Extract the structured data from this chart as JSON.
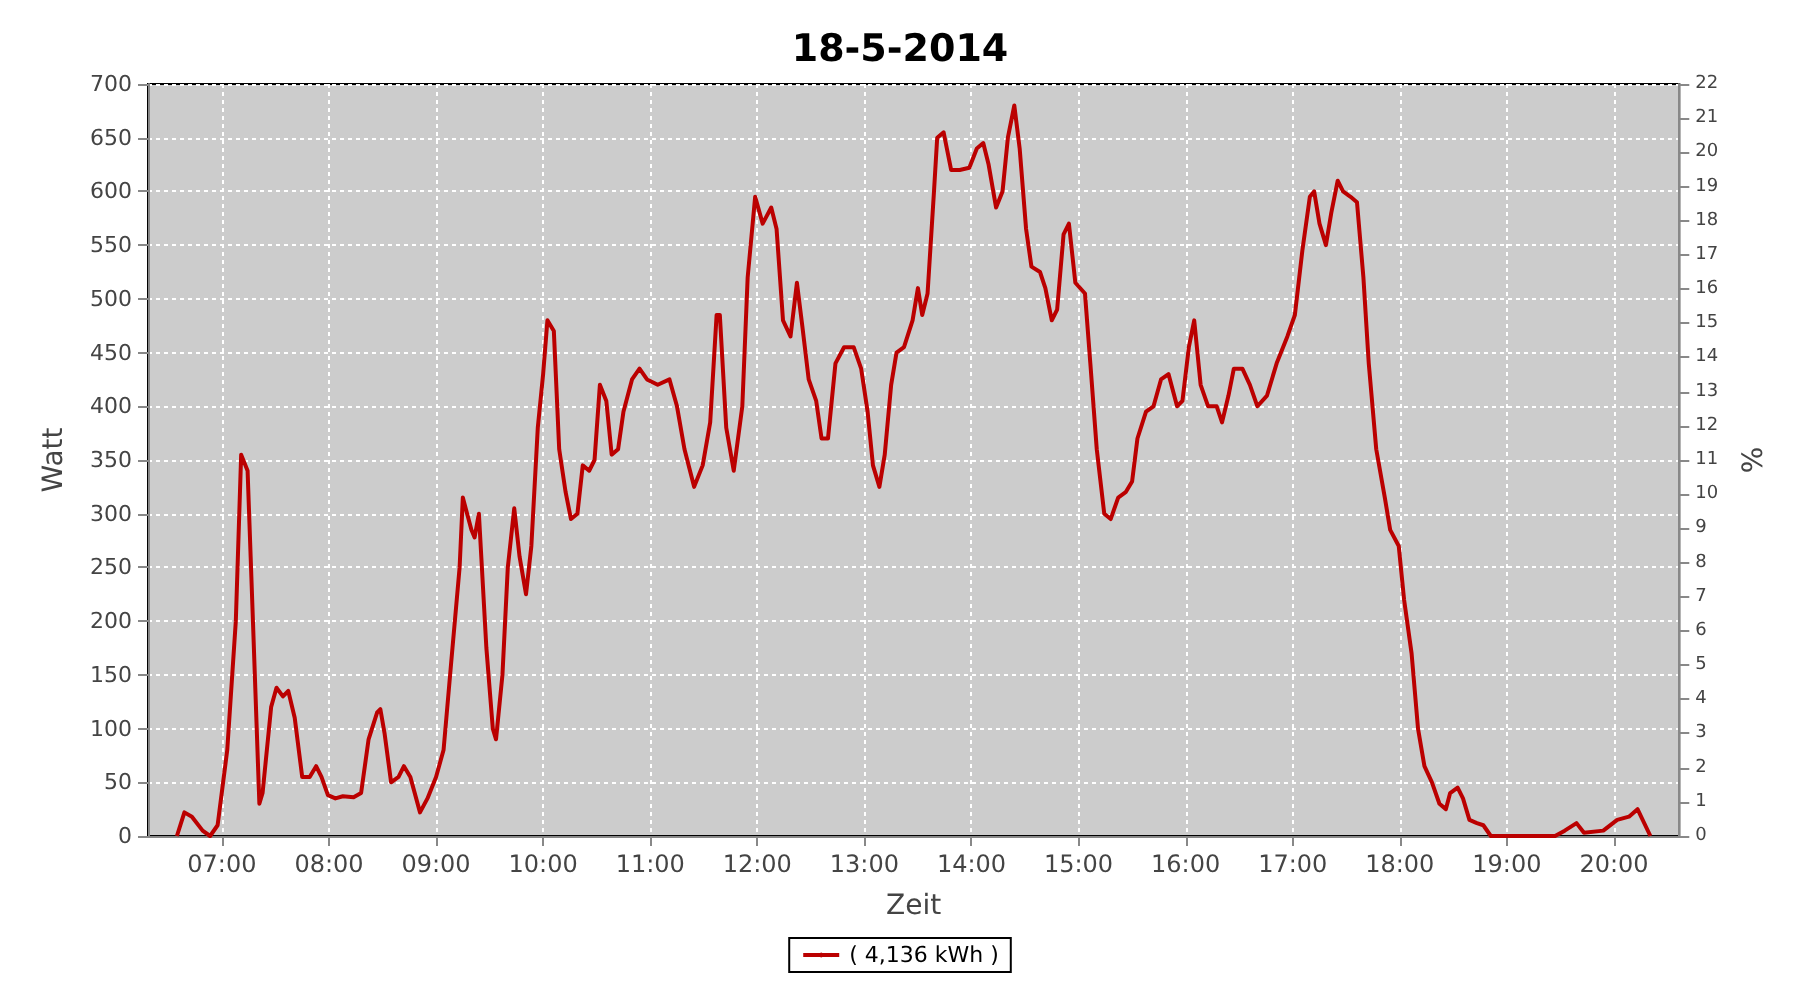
{
  "chart_data": {
    "type": "line",
    "title": "18-5-2014",
    "xlabel": "Zeit",
    "ylabel": "Watt",
    "y2label": "%",
    "xlim": [
      6.31,
      20.61
    ],
    "xticks": [
      {
        "value": 7,
        "label": "07:00"
      },
      {
        "value": 8,
        "label": "08:00"
      },
      {
        "value": 9,
        "label": "09:00"
      },
      {
        "value": 10,
        "label": "10:00"
      },
      {
        "value": 11,
        "label": "11:00"
      },
      {
        "value": 12,
        "label": "12:00"
      },
      {
        "value": 13,
        "label": "13:00"
      },
      {
        "value": 14,
        "label": "14:00"
      },
      {
        "value": 15,
        "label": "15:00"
      },
      {
        "value": 16,
        "label": "16:00"
      },
      {
        "value": 17,
        "label": "17:00"
      },
      {
        "value": 18,
        "label": "18:00"
      },
      {
        "value": 19,
        "label": "19:00"
      },
      {
        "value": 20,
        "label": "20:00"
      }
    ],
    "ylim": [
      0,
      700
    ],
    "yticks": [
      0,
      50,
      100,
      150,
      200,
      250,
      300,
      350,
      400,
      450,
      500,
      550,
      600,
      650,
      700
    ],
    "y2lim": [
      0,
      22
    ],
    "y2ticks": [
      0,
      1,
      2,
      3,
      4,
      5,
      6,
      7,
      8,
      9,
      10,
      11,
      12,
      13,
      14,
      15,
      16,
      17,
      18,
      19,
      20,
      21,
      22
    ],
    "grid": true,
    "legend": "bottom",
    "marker": "none",
    "line_style": "solid",
    "series": [
      {
        "name": "( 4,136 kWh )",
        "color": "#bb0000",
        "x": [
          6.58,
          6.65,
          6.72,
          6.82,
          6.89,
          6.96,
          7.05,
          7.13,
          7.18,
          7.24,
          7.29,
          7.35,
          7.38,
          7.46,
          7.51,
          7.57,
          7.62,
          7.68,
          7.75,
          7.82,
          7.88,
          7.93,
          7.99,
          8.06,
          8.13,
          8.23,
          8.3,
          8.37,
          8.45,
          8.48,
          8.52,
          8.58,
          8.65,
          8.7,
          8.76,
          8.85,
          8.92,
          9.0,
          9.07,
          9.14,
          9.22,
          9.25,
          9.33,
          9.36,
          9.4,
          9.47,
          9.53,
          9.56,
          9.62,
          9.67,
          9.73,
          9.78,
          9.84,
          9.89,
          9.95,
          10.0,
          10.04,
          10.1,
          10.15,
          10.21,
          10.26,
          10.32,
          10.37,
          10.43,
          10.48,
          10.53,
          10.59,
          10.64,
          10.7,
          10.75,
          10.83,
          10.9,
          10.97,
          11.07,
          11.18,
          11.25,
          11.32,
          11.41,
          11.49,
          11.56,
          11.62,
          11.65,
          11.71,
          11.78,
          11.86,
          11.91,
          11.98,
          12.05,
          12.13,
          12.18,
          12.24,
          12.31,
          12.37,
          12.42,
          12.48,
          12.55,
          12.6,
          12.66,
          12.73,
          12.81,
          12.9,
          12.97,
          13.03,
          13.08,
          13.14,
          13.19,
          13.25,
          13.3,
          13.37,
          13.45,
          13.5,
          13.54,
          13.59,
          13.65,
          13.68,
          13.74,
          13.81,
          13.89,
          13.98,
          14.05,
          14.11,
          14.16,
          14.23,
          14.29,
          14.34,
          14.4,
          14.45,
          14.51,
          14.56,
          14.64,
          14.69,
          14.75,
          14.8,
          14.86,
          14.91,
          14.97,
          15.06,
          15.11,
          15.17,
          15.24,
          15.3,
          15.37,
          15.44,
          15.5,
          15.55,
          15.63,
          15.7,
          15.77,
          15.84,
          15.92,
          15.97,
          16.03,
          16.08,
          16.14,
          16.21,
          16.29,
          16.34,
          16.4,
          16.45,
          16.53,
          16.6,
          16.67,
          16.76,
          16.85,
          16.95,
          17.02,
          17.09,
          17.16,
          17.2,
          17.25,
          17.31,
          17.36,
          17.42,
          17.47,
          17.54,
          17.6,
          17.66,
          17.71,
          17.78,
          17.86,
          17.91,
          17.99,
          18.04,
          18.11,
          18.17,
          18.23,
          18.3,
          18.37,
          18.43,
          18.47,
          18.54,
          18.59,
          18.65,
          18.72,
          18.78,
          18.85,
          19.45,
          19.54,
          19.65,
          19.72,
          19.9,
          20.03,
          20.14,
          20.22,
          20.34
        ],
        "values": [
          0,
          22,
          18,
          5,
          0,
          10,
          80,
          200,
          355,
          340,
          200,
          30,
          40,
          120,
          138,
          130,
          135,
          110,
          55,
          55,
          65,
          55,
          38,
          35,
          37,
          36,
          40,
          90,
          115,
          118,
          95,
          50,
          55,
          65,
          55,
          22,
          35,
          55,
          80,
          160,
          250,
          315,
          285,
          278,
          300,
          175,
          100,
          90,
          150,
          250,
          305,
          260,
          225,
          270,
          380,
          430,
          480,
          470,
          360,
          320,
          295,
          300,
          345,
          340,
          350,
          420,
          405,
          355,
          360,
          395,
          425,
          435,
          425,
          420,
          425,
          400,
          360,
          325,
          345,
          385,
          485,
          485,
          380,
          340,
          400,
          520,
          595,
          570,
          585,
          565,
          480,
          465,
          515,
          475,
          425,
          405,
          370,
          370,
          440,
          455,
          455,
          435,
          395,
          345,
          325,
          355,
          420,
          450,
          455,
          480,
          510,
          485,
          505,
          600,
          650,
          655,
          620,
          620,
          622,
          640,
          645,
          625,
          585,
          600,
          650,
          680,
          640,
          565,
          530,
          525,
          510,
          480,
          490,
          560,
          570,
          515,
          505,
          440,
          360,
          300,
          295,
          315,
          320,
          330,
          370,
          395,
          400,
          425,
          430,
          400,
          405,
          455,
          480,
          420,
          400,
          400,
          385,
          410,
          435,
          435,
          420,
          400,
          410,
          440,
          465,
          485,
          545,
          595,
          600,
          570,
          550,
          580,
          610,
          600,
          595,
          590,
          520,
          440,
          360,
          315,
          285,
          270,
          220,
          170,
          100,
          65,
          50,
          30,
          25,
          40,
          45,
          35,
          15,
          12,
          10,
          0,
          0,
          5,
          12,
          3,
          5,
          15,
          18,
          25,
          0
        ]
      }
    ]
  }
}
